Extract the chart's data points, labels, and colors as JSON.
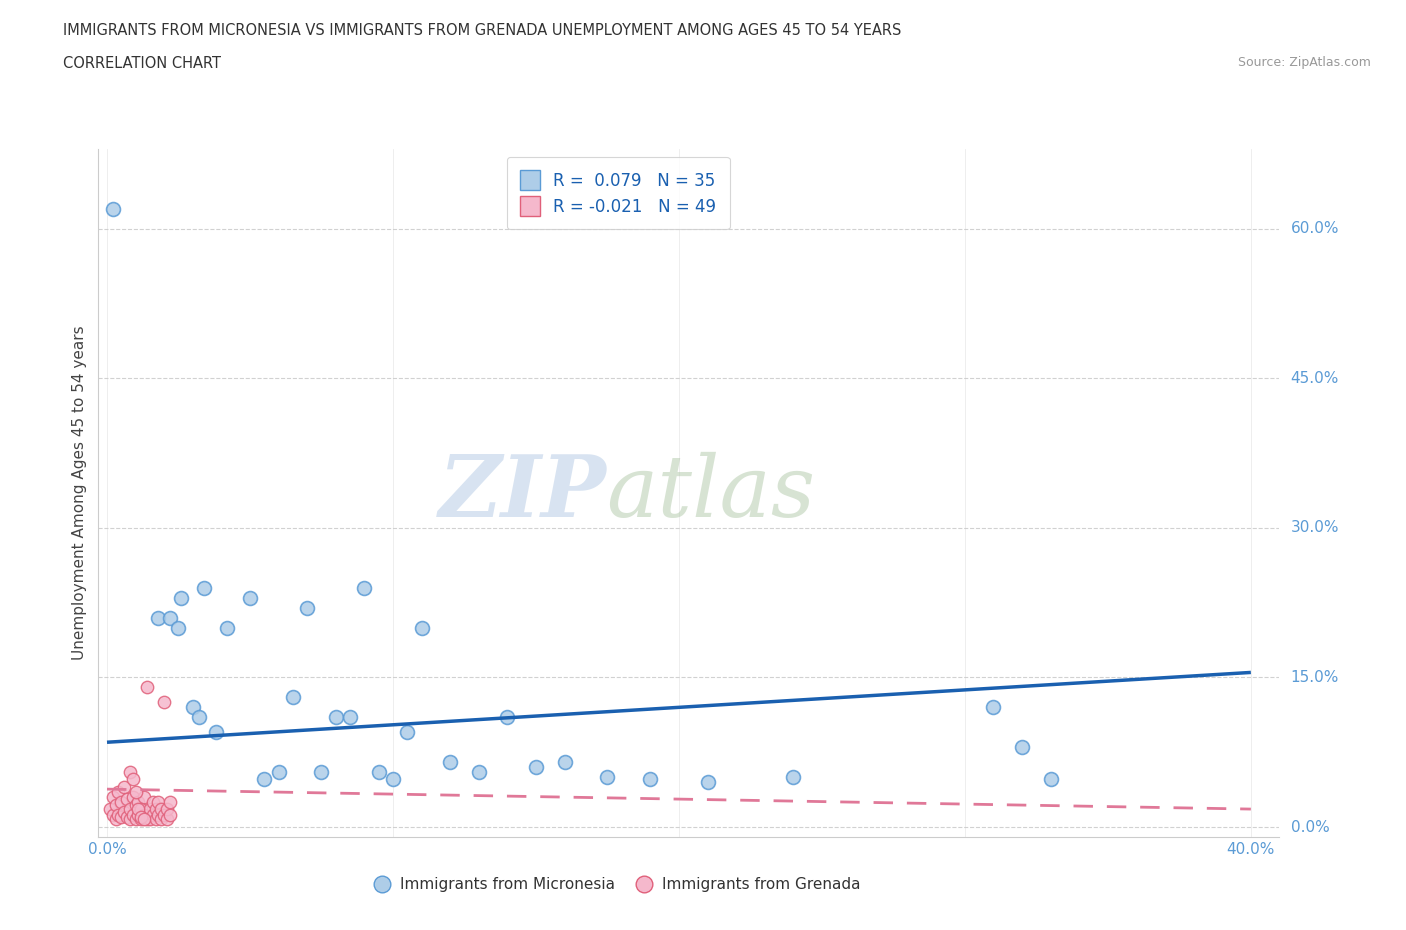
{
  "title_line1": "IMMIGRANTS FROM MICRONESIA VS IMMIGRANTS FROM GRENADA UNEMPLOYMENT AMONG AGES 45 TO 54 YEARS",
  "title_line2": "CORRELATION CHART",
  "source_text": "Source: ZipAtlas.com",
  "ylabel": "Unemployment Among Ages 45 to 54 years",
  "xlim": [
    -0.003,
    0.41
  ],
  "ylim": [
    -0.01,
    0.68
  ],
  "x_ticks": [
    0.0,
    0.1,
    0.2,
    0.3,
    0.4
  ],
  "x_tick_labels": [
    "0.0%",
    "",
    "",
    "",
    "40.0%"
  ],
  "y_ticks": [
    0.0,
    0.15,
    0.3,
    0.45,
    0.6
  ],
  "y_tick_labels": [
    "0.0%",
    "15.0%",
    "30.0%",
    "45.0%",
    "60.0%"
  ],
  "micronesia_color": "#aecde8",
  "grenada_color": "#f5b8cc",
  "micronesia_edge": "#5b9bd5",
  "grenada_edge": "#e0607a",
  "line_blue": "#1a60b0",
  "line_pink": "#e07898",
  "R_micronesia": 0.079,
  "N_micronesia": 35,
  "R_grenada": -0.021,
  "N_grenada": 49,
  "legend_label_micronesia": "Immigrants from Micronesia",
  "legend_label_grenada": "Immigrants from Grenada",
  "watermark_zip": "ZIP",
  "watermark_atlas": "atlas",
  "mic_line_y0": 0.085,
  "mic_line_y1": 0.155,
  "gren_line_y0": 0.038,
  "gren_line_y1": 0.018,
  "micronesia_x": [
    0.002,
    0.018,
    0.022,
    0.026,
    0.03,
    0.032,
    0.034,
    0.038,
    0.042,
    0.05,
    0.055,
    0.06,
    0.065,
    0.07,
    0.075,
    0.08,
    0.085,
    0.09,
    0.095,
    0.1,
    0.105,
    0.11,
    0.12,
    0.13,
    0.14,
    0.15,
    0.16,
    0.175,
    0.19,
    0.21,
    0.24,
    0.31,
    0.32,
    0.33,
    0.025
  ],
  "micronesia_y": [
    0.62,
    0.21,
    0.21,
    0.23,
    0.12,
    0.11,
    0.24,
    0.095,
    0.2,
    0.23,
    0.048,
    0.055,
    0.13,
    0.22,
    0.055,
    0.11,
    0.11,
    0.24,
    0.055,
    0.048,
    0.095,
    0.2,
    0.065,
    0.055,
    0.11,
    0.06,
    0.065,
    0.05,
    0.048,
    0.045,
    0.05,
    0.12,
    0.08,
    0.048,
    0.2
  ],
  "grenada_x": [
    0.001,
    0.002,
    0.002,
    0.003,
    0.003,
    0.004,
    0.004,
    0.005,
    0.005,
    0.006,
    0.006,
    0.007,
    0.007,
    0.008,
    0.008,
    0.009,
    0.009,
    0.01,
    0.01,
    0.011,
    0.011,
    0.012,
    0.012,
    0.013,
    0.013,
    0.014,
    0.014,
    0.015,
    0.015,
    0.016,
    0.016,
    0.017,
    0.017,
    0.018,
    0.018,
    0.019,
    0.019,
    0.02,
    0.02,
    0.021,
    0.021,
    0.022,
    0.022,
    0.008,
    0.009,
    0.01,
    0.011,
    0.012,
    0.013
  ],
  "grenada_y": [
    0.018,
    0.012,
    0.03,
    0.008,
    0.022,
    0.012,
    0.035,
    0.01,
    0.025,
    0.015,
    0.04,
    0.01,
    0.028,
    0.008,
    0.018,
    0.012,
    0.03,
    0.008,
    0.022,
    0.012,
    0.025,
    0.008,
    0.018,
    0.012,
    0.03,
    0.008,
    0.14,
    0.008,
    0.018,
    0.012,
    0.025,
    0.008,
    0.018,
    0.012,
    0.025,
    0.008,
    0.018,
    0.012,
    0.125,
    0.008,
    0.018,
    0.012,
    0.025,
    0.055,
    0.048,
    0.035,
    0.018,
    0.01,
    0.008
  ]
}
